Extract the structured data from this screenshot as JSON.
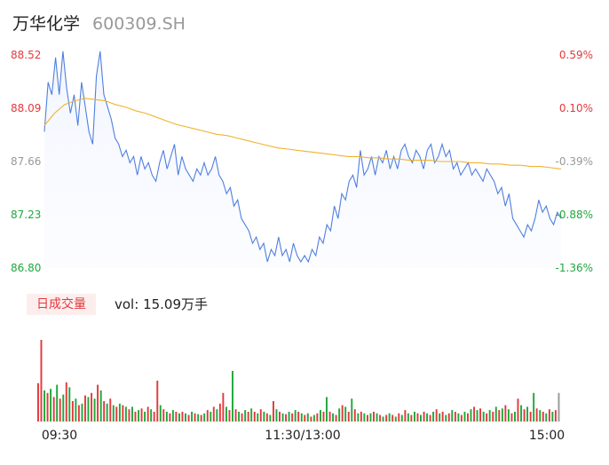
{
  "header": {
    "name": "万华化学",
    "code": "600309.SH"
  },
  "volume_panel": {
    "tag": "日成交量",
    "label": "vol:",
    "value": "15.09万手"
  },
  "colors": {
    "line": "#4f7fe0",
    "avg": "#f0b32d",
    "up": "#e4393c",
    "down": "#1fa83c",
    "flat": "#999999"
  },
  "chart_data": {
    "type": "line",
    "price_axis": {
      "ticks": [
        {
          "value": 88.52,
          "label": "88.52",
          "pct": "0.59%",
          "dir": "up"
        },
        {
          "value": 88.09,
          "label": "88.09",
          "pct": "0.10%",
          "dir": "up"
        },
        {
          "value": 87.66,
          "label": "87.66",
          "pct": "-0.39%",
          "dir": "flat"
        },
        {
          "value": 87.23,
          "label": "87.23",
          "pct": "-0.88%",
          "dir": "down"
        },
        {
          "value": 86.8,
          "label": "86.80",
          "pct": "-1.36%",
          "dir": "down"
        }
      ],
      "ylim": [
        86.8,
        88.52
      ]
    },
    "time_axis": {
      "labels": [
        "09:30",
        "11:30/13:00",
        "15:00"
      ]
    },
    "price": [
      87.9,
      88.3,
      88.2,
      88.5,
      88.2,
      88.55,
      88.25,
      88.05,
      88.2,
      87.95,
      88.3,
      88.1,
      87.9,
      87.8,
      88.35,
      88.55,
      88.2,
      88.1,
      88.0,
      87.85,
      87.8,
      87.7,
      87.75,
      87.65,
      87.7,
      87.55,
      87.7,
      87.6,
      87.65,
      87.55,
      87.5,
      87.65,
      87.75,
      87.6,
      87.7,
      87.8,
      87.55,
      87.7,
      87.6,
      87.55,
      87.5,
      87.6,
      87.55,
      87.65,
      87.55,
      87.6,
      87.7,
      87.55,
      87.5,
      87.4,
      87.45,
      87.3,
      87.35,
      87.2,
      87.15,
      87.1,
      87.0,
      87.05,
      86.95,
      87.0,
      86.85,
      86.95,
      86.9,
      87.05,
      86.9,
      86.95,
      86.85,
      87.0,
      86.9,
      86.85,
      86.9,
      86.85,
      86.95,
      86.9,
      87.05,
      87.0,
      87.15,
      87.1,
      87.3,
      87.2,
      87.4,
      87.35,
      87.5,
      87.55,
      87.45,
      87.75,
      87.55,
      87.6,
      87.7,
      87.55,
      87.7,
      87.65,
      87.75,
      87.6,
      87.7,
      87.6,
      87.75,
      87.8,
      87.7,
      87.65,
      87.75,
      87.7,
      87.6,
      87.75,
      87.8,
      87.65,
      87.7,
      87.8,
      87.7,
      87.75,
      87.6,
      87.65,
      87.55,
      87.6,
      87.65,
      87.55,
      87.6,
      87.55,
      87.5,
      87.6,
      87.55,
      87.5,
      87.4,
      87.45,
      87.3,
      87.4,
      87.2,
      87.15,
      87.1,
      87.05,
      87.15,
      87.1,
      87.2,
      87.35,
      87.25,
      87.3,
      87.2,
      87.15,
      87.25,
      87.2
    ],
    "avg": [
      87.95,
      88.05,
      88.12,
      88.15,
      88.17,
      88.16,
      88.15,
      88.12,
      88.1,
      88.07,
      88.05,
      88.02,
      87.99,
      87.96,
      87.94,
      87.92,
      87.9,
      87.88,
      87.87,
      87.85,
      87.83,
      87.81,
      87.79,
      87.77,
      87.76,
      87.75,
      87.74,
      87.73,
      87.72,
      87.71,
      87.7,
      87.7,
      87.69,
      87.69,
      87.68,
      87.68,
      87.67,
      87.67,
      87.67,
      87.66,
      87.66,
      87.66,
      87.65,
      87.65,
      87.64,
      87.64,
      87.63,
      87.63,
      87.62,
      87.62,
      87.61,
      87.6
    ],
    "volume_range": [
      0,
      100
    ],
    "volume": [
      {
        "v": 47,
        "dir": "up"
      },
      {
        "v": 100,
        "dir": "up"
      },
      {
        "v": 38,
        "dir": "down"
      },
      {
        "v": 35,
        "dir": "up"
      },
      {
        "v": 40,
        "dir": "down"
      },
      {
        "v": 30,
        "dir": "up"
      },
      {
        "v": 45,
        "dir": "down"
      },
      {
        "v": 28,
        "dir": "up"
      },
      {
        "v": 33,
        "dir": "down"
      },
      {
        "v": 48,
        "dir": "up"
      },
      {
        "v": 42,
        "dir": "down"
      },
      {
        "v": 25,
        "dir": "up"
      },
      {
        "v": 28,
        "dir": "down"
      },
      {
        "v": 20,
        "dir": "up"
      },
      {
        "v": 22,
        "dir": "down"
      },
      {
        "v": 32,
        "dir": "up"
      },
      {
        "v": 30,
        "dir": "down"
      },
      {
        "v": 35,
        "dir": "up"
      },
      {
        "v": 28,
        "dir": "down"
      },
      {
        "v": 45,
        "dir": "up"
      },
      {
        "v": 38,
        "dir": "down"
      },
      {
        "v": 25,
        "dir": "up"
      },
      {
        "v": 22,
        "dir": "down"
      },
      {
        "v": 28,
        "dir": "up"
      },
      {
        "v": 20,
        "dir": "down"
      },
      {
        "v": 18,
        "dir": "up"
      },
      {
        "v": 22,
        "dir": "down"
      },
      {
        "v": 20,
        "dir": "up"
      },
      {
        "v": 18,
        "dir": "down"
      },
      {
        "v": 15,
        "dir": "up"
      },
      {
        "v": 18,
        "dir": "down"
      },
      {
        "v": 12,
        "dir": "up"
      },
      {
        "v": 14,
        "dir": "down"
      },
      {
        "v": 16,
        "dir": "up"
      },
      {
        "v": 12,
        "dir": "down"
      },
      {
        "v": 18,
        "dir": "up"
      },
      {
        "v": 15,
        "dir": "down"
      },
      {
        "v": 12,
        "dir": "up"
      },
      {
        "v": 50,
        "dir": "up"
      },
      {
        "v": 20,
        "dir": "down"
      },
      {
        "v": 15,
        "dir": "up"
      },
      {
        "v": 12,
        "dir": "down"
      },
      {
        "v": 10,
        "dir": "up"
      },
      {
        "v": 14,
        "dir": "down"
      },
      {
        "v": 12,
        "dir": "up"
      },
      {
        "v": 10,
        "dir": "down"
      },
      {
        "v": 12,
        "dir": "up"
      },
      {
        "v": 10,
        "dir": "down"
      },
      {
        "v": 8,
        "dir": "up"
      },
      {
        "v": 12,
        "dir": "down"
      },
      {
        "v": 10,
        "dir": "up"
      },
      {
        "v": 9,
        "dir": "down"
      },
      {
        "v": 8,
        "dir": "up"
      },
      {
        "v": 10,
        "dir": "down"
      },
      {
        "v": 14,
        "dir": "up"
      },
      {
        "v": 12,
        "dir": "down"
      },
      {
        "v": 18,
        "dir": "up"
      },
      {
        "v": 15,
        "dir": "down"
      },
      {
        "v": 22,
        "dir": "up"
      },
      {
        "v": 35,
        "dir": "up"
      },
      {
        "v": 18,
        "dir": "down"
      },
      {
        "v": 14,
        "dir": "up"
      },
      {
        "v": 62,
        "dir": "down"
      },
      {
        "v": 15,
        "dir": "up"
      },
      {
        "v": 12,
        "dir": "down"
      },
      {
        "v": 10,
        "dir": "up"
      },
      {
        "v": 14,
        "dir": "down"
      },
      {
        "v": 12,
        "dir": "up"
      },
      {
        "v": 16,
        "dir": "down"
      },
      {
        "v": 12,
        "dir": "up"
      },
      {
        "v": 10,
        "dir": "down"
      },
      {
        "v": 15,
        "dir": "up"
      },
      {
        "v": 12,
        "dir": "down"
      },
      {
        "v": 10,
        "dir": "up"
      },
      {
        "v": 8,
        "dir": "down"
      },
      {
        "v": 25,
        "dir": "up"
      },
      {
        "v": 15,
        "dir": "down"
      },
      {
        "v": 12,
        "dir": "up"
      },
      {
        "v": 10,
        "dir": "down"
      },
      {
        "v": 9,
        "dir": "up"
      },
      {
        "v": 12,
        "dir": "down"
      },
      {
        "v": 10,
        "dir": "up"
      },
      {
        "v": 14,
        "dir": "down"
      },
      {
        "v": 12,
        "dir": "up"
      },
      {
        "v": 10,
        "dir": "down"
      },
      {
        "v": 8,
        "dir": "up"
      },
      {
        "v": 10,
        "dir": "down"
      },
      {
        "v": 6,
        "dir": "up"
      },
      {
        "v": 8,
        "dir": "down"
      },
      {
        "v": 10,
        "dir": "up"
      },
      {
        "v": 14,
        "dir": "down"
      },
      {
        "v": 12,
        "dir": "up"
      },
      {
        "v": 30,
        "dir": "down"
      },
      {
        "v": 12,
        "dir": "up"
      },
      {
        "v": 10,
        "dir": "down"
      },
      {
        "v": 8,
        "dir": "up"
      },
      {
        "v": 16,
        "dir": "down"
      },
      {
        "v": 20,
        "dir": "up"
      },
      {
        "v": 18,
        "dir": "down"
      },
      {
        "v": 12,
        "dir": "up"
      },
      {
        "v": 28,
        "dir": "down"
      },
      {
        "v": 15,
        "dir": "up"
      },
      {
        "v": 10,
        "dir": "down"
      },
      {
        "v": 12,
        "dir": "up"
      },
      {
        "v": 10,
        "dir": "down"
      },
      {
        "v": 8,
        "dir": "up"
      },
      {
        "v": 10,
        "dir": "down"
      },
      {
        "v": 12,
        "dir": "up"
      },
      {
        "v": 10,
        "dir": "down"
      },
      {
        "v": 8,
        "dir": "up"
      },
      {
        "v": 6,
        "dir": "down"
      },
      {
        "v": 8,
        "dir": "up"
      },
      {
        "v": 10,
        "dir": "down"
      },
      {
        "v": 8,
        "dir": "up"
      },
      {
        "v": 6,
        "dir": "down"
      },
      {
        "v": 10,
        "dir": "up"
      },
      {
        "v": 8,
        "dir": "down"
      },
      {
        "v": 14,
        "dir": "up"
      },
      {
        "v": 10,
        "dir": "down"
      },
      {
        "v": 8,
        "dir": "up"
      },
      {
        "v": 12,
        "dir": "down"
      },
      {
        "v": 10,
        "dir": "up"
      },
      {
        "v": 8,
        "dir": "down"
      },
      {
        "v": 12,
        "dir": "up"
      },
      {
        "v": 10,
        "dir": "down"
      },
      {
        "v": 8,
        "dir": "up"
      },
      {
        "v": 12,
        "dir": "down"
      },
      {
        "v": 15,
        "dir": "up"
      },
      {
        "v": 10,
        "dir": "down"
      },
      {
        "v": 12,
        "dir": "up"
      },
      {
        "v": 8,
        "dir": "down"
      },
      {
        "v": 10,
        "dir": "up"
      },
      {
        "v": 14,
        "dir": "down"
      },
      {
        "v": 12,
        "dir": "up"
      },
      {
        "v": 10,
        "dir": "down"
      },
      {
        "v": 8,
        "dir": "up"
      },
      {
        "v": 12,
        "dir": "down"
      },
      {
        "v": 10,
        "dir": "up"
      },
      {
        "v": 15,
        "dir": "down"
      },
      {
        "v": 18,
        "dir": "up"
      },
      {
        "v": 14,
        "dir": "down"
      },
      {
        "v": 16,
        "dir": "up"
      },
      {
        "v": 12,
        "dir": "down"
      },
      {
        "v": 10,
        "dir": "up"
      },
      {
        "v": 14,
        "dir": "down"
      },
      {
        "v": 12,
        "dir": "up"
      },
      {
        "v": 18,
        "dir": "down"
      },
      {
        "v": 14,
        "dir": "up"
      },
      {
        "v": 16,
        "dir": "down"
      },
      {
        "v": 20,
        "dir": "up"
      },
      {
        "v": 15,
        "dir": "down"
      },
      {
        "v": 10,
        "dir": "up"
      },
      {
        "v": 12,
        "dir": "down"
      },
      {
        "v": 28,
        "dir": "up"
      },
      {
        "v": 20,
        "dir": "down"
      },
      {
        "v": 15,
        "dir": "up"
      },
      {
        "v": 18,
        "dir": "down"
      },
      {
        "v": 12,
        "dir": "up"
      },
      {
        "v": 35,
        "dir": "down"
      },
      {
        "v": 16,
        "dir": "up"
      },
      {
        "v": 14,
        "dir": "down"
      },
      {
        "v": 12,
        "dir": "up"
      },
      {
        "v": 10,
        "dir": "down"
      },
      {
        "v": 15,
        "dir": "up"
      },
      {
        "v": 12,
        "dir": "down"
      },
      {
        "v": 14,
        "dir": "up"
      },
      {
        "v": 35,
        "dir": "flat"
      }
    ]
  }
}
